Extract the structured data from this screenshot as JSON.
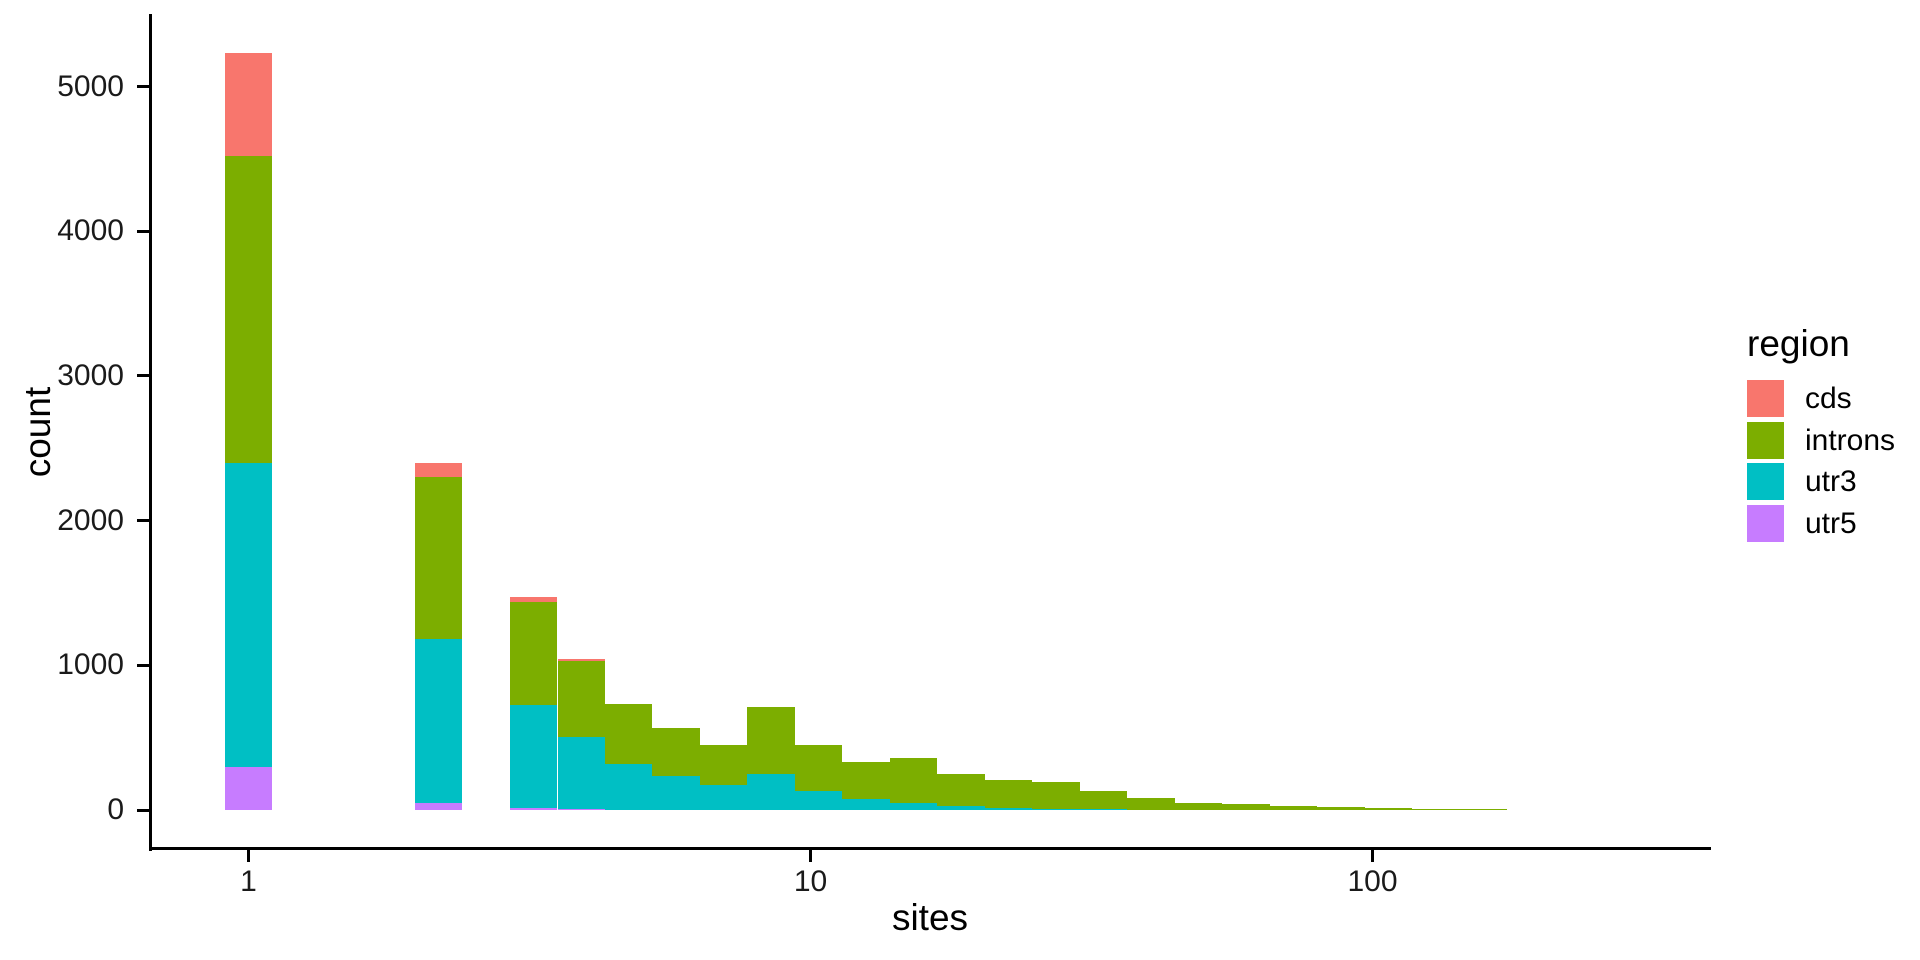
{
  "chart_data": {
    "type": "bar",
    "subtype": "stacked-histogram",
    "title": "",
    "xlabel": "sites",
    "ylabel": "count",
    "x_scale": "log10",
    "grid": false,
    "x_ticks": {
      "values": [
        1,
        10,
        100
      ],
      "labels": [
        "1",
        "10",
        "100"
      ]
    },
    "y_ticks": {
      "values": [
        0,
        1000,
        2000,
        3000,
        4000,
        5000
      ],
      "labels": [
        "0",
        "1000",
        "2000",
        "3000",
        "4000",
        "5000"
      ]
    },
    "ylim": [
      0,
      5535
    ],
    "xlim_log10": [
      -0.173,
      2.6
    ],
    "bin_width_log10": 0.0845,
    "legend": {
      "title": "region",
      "position": "right",
      "entries": [
        {
          "label": "cds",
          "color": "#F8766D"
        },
        {
          "label": "introns",
          "color": "#7CAE00"
        },
        {
          "label": "utr3",
          "color": "#00BFC4"
        },
        {
          "label": "utr5",
          "color": "#C77CFF"
        }
      ]
    },
    "colors": {
      "cds": "#F8766D",
      "introns": "#7CAE00",
      "utr3": "#00BFC4",
      "utr5": "#C77CFF"
    },
    "stack_order_bottom_to_top": [
      "utr5",
      "utr3",
      "introns",
      "cds"
    ],
    "bins": [
      {
        "x_center": 1.0,
        "log10_center": 0.0,
        "counts": {
          "utr5": 300,
          "utr3": 2100,
          "introns": 2120,
          "cds": 710
        }
      },
      {
        "x_center": 2.2,
        "log10_center": 0.338,
        "counts": {
          "utr5": 50,
          "utr3": 1130,
          "introns": 1120,
          "cds": 100
        }
      },
      {
        "x_center": 3.2,
        "log10_center": 0.507,
        "counts": {
          "utr5": 15,
          "utr3": 710,
          "introns": 715,
          "cds": 35
        }
      },
      {
        "x_center": 3.9,
        "log10_center": 0.592,
        "counts": {
          "utr5": 6,
          "utr3": 500,
          "introns": 524,
          "cds": 12
        }
      },
      {
        "x_center": 4.7,
        "log10_center": 0.676,
        "counts": {
          "utr5": 0,
          "utr3": 320,
          "introns": 412,
          "cds": 0
        }
      },
      {
        "x_center": 5.8,
        "log10_center": 0.761,
        "counts": {
          "utr5": 0,
          "utr3": 232,
          "introns": 333,
          "cds": 0
        }
      },
      {
        "x_center": 7.0,
        "log10_center": 0.845,
        "counts": {
          "utr5": 0,
          "utr3": 170,
          "introns": 280,
          "cds": 0
        }
      },
      {
        "x_center": 8.5,
        "log10_center": 0.93,
        "counts": {
          "utr5": 0,
          "utr3": 250,
          "introns": 460,
          "cds": 0
        }
      },
      {
        "x_center": 10.3,
        "log10_center": 1.014,
        "counts": {
          "utr5": 0,
          "utr3": 130,
          "introns": 320,
          "cds": 0
        }
      },
      {
        "x_center": 12.6,
        "log10_center": 1.099,
        "counts": {
          "utr5": 0,
          "utr3": 75,
          "introns": 255,
          "cds": 0
        }
      },
      {
        "x_center": 15.2,
        "log10_center": 1.183,
        "counts": {
          "utr5": 0,
          "utr3": 46,
          "introns": 314,
          "cds": 0
        }
      },
      {
        "x_center": 18.5,
        "log10_center": 1.268,
        "counts": {
          "utr5": 0,
          "utr3": 28,
          "introns": 222,
          "cds": 0
        }
      },
      {
        "x_center": 22.5,
        "log10_center": 1.352,
        "counts": {
          "utr5": 0,
          "utr3": 11,
          "introns": 199,
          "cds": 0
        }
      },
      {
        "x_center": 27.3,
        "log10_center": 1.437,
        "counts": {
          "utr5": 0,
          "utr3": 8,
          "introns": 189,
          "cds": 0
        }
      },
      {
        "x_center": 33.2,
        "log10_center": 1.521,
        "counts": {
          "utr5": 0,
          "utr3": 5,
          "introns": 130,
          "cds": 0
        }
      },
      {
        "x_center": 40.3,
        "log10_center": 1.606,
        "counts": {
          "utr5": 0,
          "utr3": 3,
          "introns": 78,
          "cds": 0
        }
      },
      {
        "x_center": 49.0,
        "log10_center": 1.69,
        "counts": {
          "utr5": 0,
          "utr3": 2,
          "introns": 49,
          "cds": 0
        }
      },
      {
        "x_center": 59.5,
        "log10_center": 1.775,
        "counts": {
          "utr5": 0,
          "utr3": 0,
          "introns": 39,
          "cds": 0
        }
      },
      {
        "x_center": 72.3,
        "log10_center": 1.859,
        "counts": {
          "utr5": 0,
          "utr3": 0,
          "introns": 30,
          "cds": 0
        }
      },
      {
        "x_center": 87.8,
        "log10_center": 1.944,
        "counts": {
          "utr5": 0,
          "utr3": 0,
          "introns": 18,
          "cds": 0
        }
      },
      {
        "x_center": 106.7,
        "log10_center": 2.028,
        "counts": {
          "utr5": 0,
          "utr3": 0,
          "introns": 12,
          "cds": 0
        }
      },
      {
        "x_center": 129.6,
        "log10_center": 2.113,
        "counts": {
          "utr5": 0,
          "utr3": 0,
          "introns": 8,
          "cds": 0
        }
      },
      {
        "x_center": 157.4,
        "log10_center": 2.197,
        "counts": {
          "utr5": 0,
          "utr3": 0,
          "introns": 4,
          "cds": 0
        }
      }
    ]
  }
}
